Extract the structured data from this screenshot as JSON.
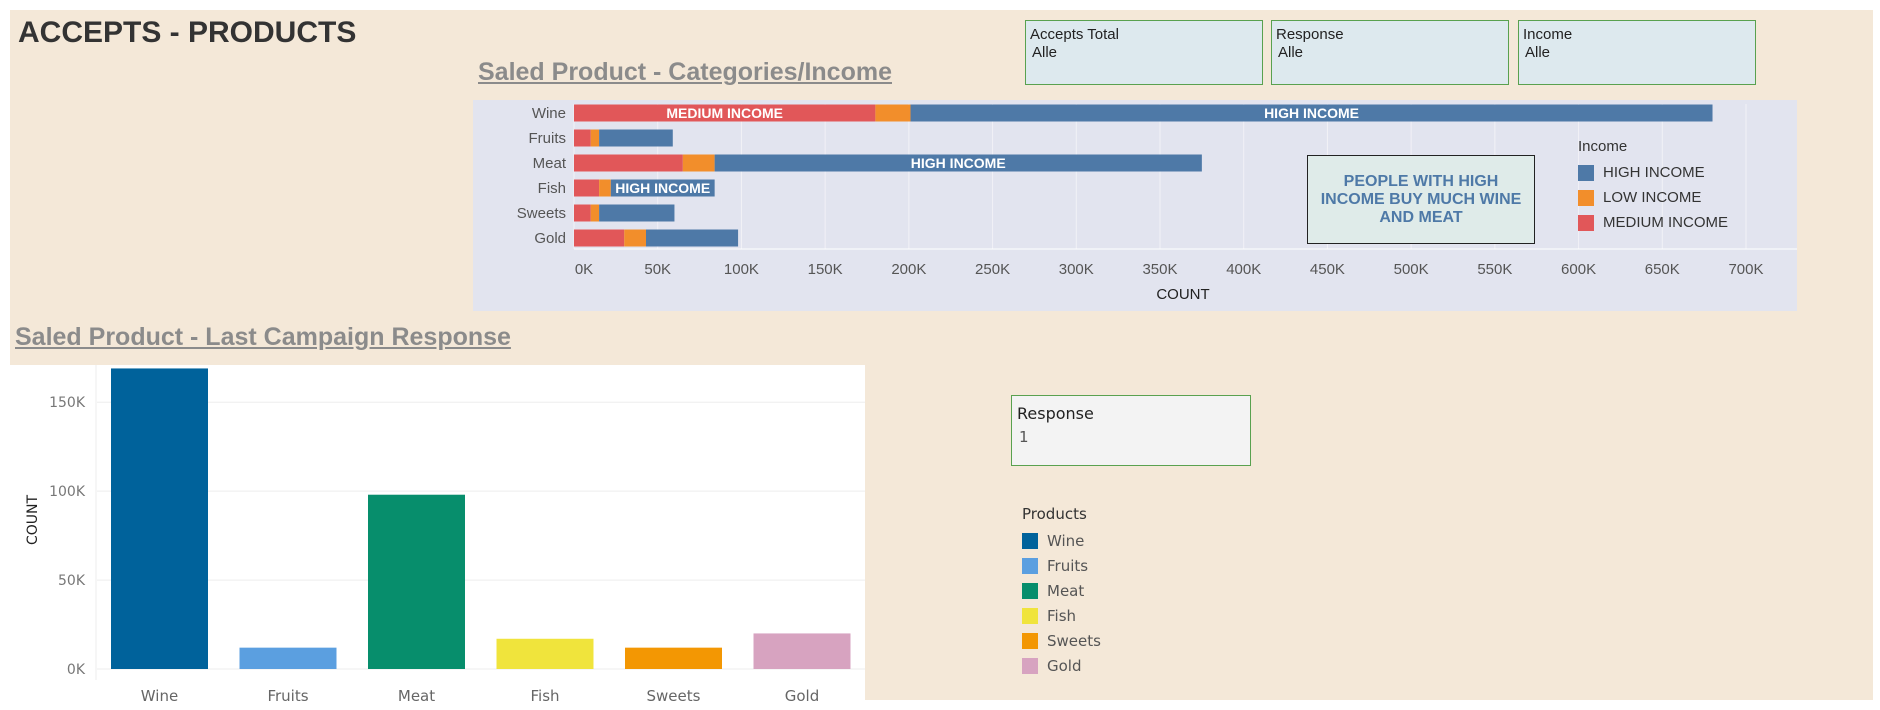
{
  "dashboard": {
    "title": "ACCEPTS - PRODUCTS",
    "section1_title": "Saled Product - Categories/Income",
    "section2_title": "Saled Product - Last Campaign Response"
  },
  "filters": [
    {
      "label": "Accepts Total",
      "value": "Alle"
    },
    {
      "label": "Response",
      "value": "Alle"
    },
    {
      "label": "Income",
      "value": "Alle"
    }
  ],
  "response_filter": {
    "label": "Response",
    "value": "1"
  },
  "annotation": "PEOPLE WITH HIGH INCOME BUY MUCH WINE AND MEAT",
  "legend_income": {
    "title": "Income",
    "items": [
      {
        "label": "HIGH INCOME",
        "color": "#4e79a7"
      },
      {
        "label": "LOW INCOME",
        "color": "#f28e2b"
      },
      {
        "label": "MEDIUM INCOME",
        "color": "#e15759"
      }
    ]
  },
  "legend_products": {
    "title": "Products",
    "items": [
      {
        "label": "Wine",
        "color": "#00629b"
      },
      {
        "label": "Fruits",
        "color": "#5b9fe0"
      },
      {
        "label": "Meat",
        "color": "#078e6c"
      },
      {
        "label": "Fish",
        "color": "#f0e43c"
      },
      {
        "label": "Sweets",
        "color": "#f39703"
      },
      {
        "label": "Gold",
        "color": "#d7a3c0"
      }
    ]
  },
  "chart_data": [
    {
      "type": "bar",
      "orientation": "horizontal",
      "stacked": true,
      "title": "Saled Product - Categories/Income",
      "categories": [
        "Wine",
        "Fruits",
        "Meat",
        "Fish",
        "Sweets",
        "Gold"
      ],
      "series": [
        {
          "name": "MEDIUM INCOME",
          "color": "#e15759",
          "values": [
            180000,
            10000,
            65000,
            15000,
            10000,
            30000
          ]
        },
        {
          "name": "LOW INCOME",
          "color": "#f28e2b",
          "values": [
            21000,
            5000,
            19000,
            7000,
            5000,
            13000
          ]
        },
        {
          "name": "HIGH INCOME",
          "color": "#4e79a7",
          "values": [
            479000,
            44000,
            291000,
            62000,
            45000,
            55000
          ]
        }
      ],
      "bar_labels": [
        {
          "category": "Wine",
          "series": "MEDIUM INCOME",
          "text": "MEDIUM INCOME"
        },
        {
          "category": "Wine",
          "series": "HIGH INCOME",
          "text": "HIGH INCOME"
        },
        {
          "category": "Meat",
          "series": "HIGH INCOME",
          "text": "HIGH INCOME"
        },
        {
          "category": "Fish",
          "series": "HIGH INCOME",
          "text": "HIGH INCOME"
        }
      ],
      "xlabel": "COUNT",
      "xlim": [
        0,
        720000
      ],
      "xticks": [
        0,
        50000,
        100000,
        150000,
        200000,
        250000,
        300000,
        350000,
        400000,
        450000,
        500000,
        550000,
        600000,
        650000,
        700000
      ],
      "xtick_labels": [
        "0K",
        "50K",
        "100K",
        "150K",
        "200K",
        "250K",
        "300K",
        "350K",
        "400K",
        "450K",
        "500K",
        "550K",
        "600K",
        "650K",
        "700K"
      ],
      "grid": true,
      "legend": "right"
    },
    {
      "type": "bar",
      "title": "Saled Product - Last Campaign Response",
      "categories": [
        "Wine",
        "Fruits",
        "Meat",
        "Fish",
        "Sweets",
        "Gold"
      ],
      "values": [
        169000,
        12000,
        98000,
        17000,
        12000,
        20000
      ],
      "colors": [
        "#00629b",
        "#5b9fe0",
        "#078e6c",
        "#f0e43c",
        "#f39703",
        "#d7a3c0"
      ],
      "ylabel": "COUNT",
      "ylim": [
        0,
        180000
      ],
      "yticks": [
        0,
        50000,
        100000,
        150000
      ],
      "ytick_labels": [
        "0K",
        "50K",
        "100K",
        "150K"
      ],
      "grid": true,
      "legend": "right"
    }
  ]
}
